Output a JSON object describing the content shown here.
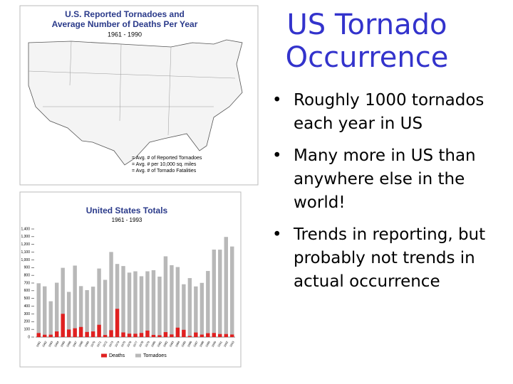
{
  "slide": {
    "title": "US Tornado Occurrence",
    "bullets": [
      "Roughly 1000 tornados each year in US",
      "Many more in US than anywhere else in the world!",
      "Trends in reporting, but probably not trends in actual occurrence"
    ]
  },
  "map": {
    "title": "U.S. Reported Tornadoes and",
    "title_2": "Average Number of Deaths Per Year",
    "subtitle": "1961 - 1990",
    "legend": [
      "= Avg. # of Reported Tornadoes",
      "= Avg. # per 10,000 sq. miles",
      "= Avg. # of Tornado Fatalities"
    ]
  },
  "chart_data": {
    "type": "bar",
    "title": "United States Totals",
    "subtitle": "1961 - 1993",
    "categories": [
      "1961",
      "1962",
      "1963",
      "1964",
      "1965",
      "1966",
      "1967",
      "1968",
      "1969",
      "1970",
      "1971",
      "1972",
      "1973",
      "1974",
      "1975",
      "1976",
      "1977",
      "1978",
      "1979",
      "1980",
      "1981",
      "1982",
      "1983",
      "1984",
      "1985",
      "1986",
      "1987",
      "1988",
      "1989",
      "1990",
      "1991",
      "1992",
      "1993"
    ],
    "series": [
      {
        "name": "Tornadoes",
        "color": "#b8b8b8",
        "values": [
          697,
          657,
          464,
          704,
          897,
          585,
          926,
          660,
          608,
          653,
          888,
          741,
          1102,
          947,
          920,
          835,
          852,
          788,
          852,
          866,
          783,
          1046,
          931,
          907,
          684,
          764,
          656,
          702,
          856,
          1133,
          1132,
          1297,
          1173
        ]
      },
      {
        "name": "Deaths",
        "color": "#e02020",
        "values": [
          52,
          30,
          31,
          73,
          301,
          98,
          114,
          131,
          66,
          73,
          159,
          27,
          89,
          366,
          60,
          44,
          43,
          53,
          84,
          28,
          24,
          64,
          34,
          122,
          94,
          15,
          59,
          32,
          50,
          53,
          39,
          39,
          33
        ]
      }
    ],
    "ylim": [
      0,
      1400
    ],
    "yticks": [
      0,
      100,
      200,
      300,
      400,
      500,
      600,
      700,
      800,
      900,
      {
        "value": 1000,
        "label": "1,000"
      },
      {
        "value": 1100,
        "label": "1,100"
      },
      {
        "value": 1200,
        "label": "1,200"
      },
      {
        "value": 1300,
        "label": "1,300"
      },
      {
        "value": 1400,
        "label": "1,400"
      }
    ],
    "legend": "bottom"
  }
}
